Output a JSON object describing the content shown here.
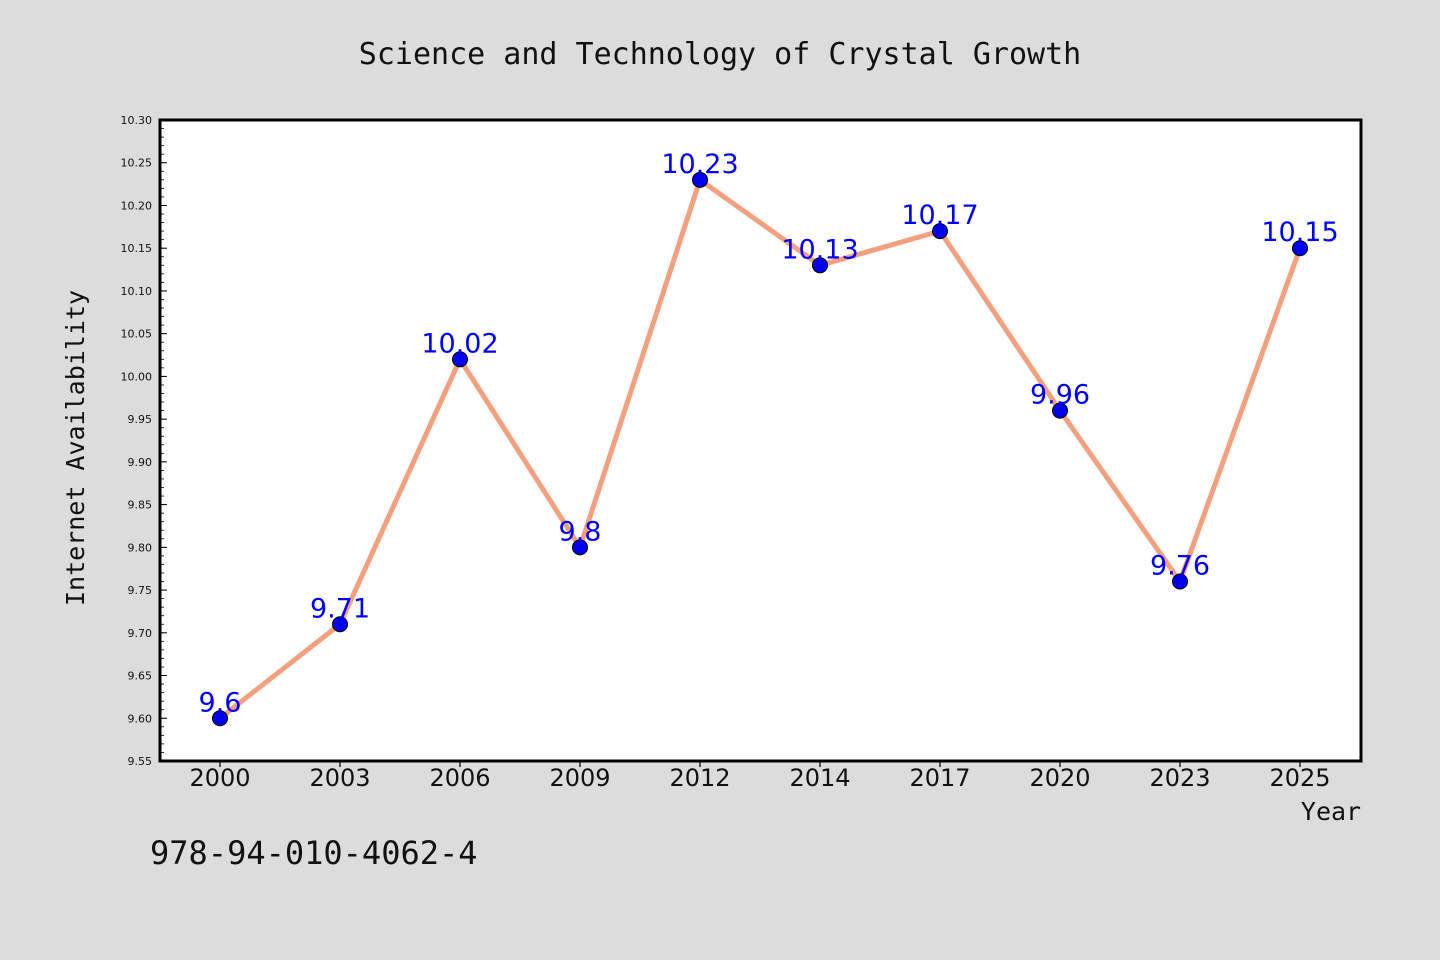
{
  "chart_data": {
    "type": "line",
    "title": "Science and Technology of Crystal Growth",
    "xlabel": "Year",
    "ylabel": "Internet Availability",
    "categories": [
      "2000",
      "2003",
      "2006",
      "2009",
      "2012",
      "2014",
      "2017",
      "2020",
      "2023",
      "2025"
    ],
    "series": [
      {
        "values": [
          9.6,
          9.71,
          10.02,
          9.8,
          10.23,
          10.13,
          10.17,
          9.96,
          9.76,
          10.15
        ],
        "data_labels": [
          "9.6",
          "9.71",
          "10.02",
          "9.8",
          "10.23",
          "10.13",
          "10.17",
          "9.96",
          "9.76",
          "10.15"
        ],
        "line_color": "#f4a07e",
        "marker_color": "#0000ee",
        "label_color": "#0000ff"
      }
    ],
    "ylim": [
      9.55,
      10.3
    ],
    "yticks": [
      "9.55",
      "9.60",
      "9.65",
      "9.70",
      "9.75",
      "9.80",
      "9.85",
      "9.90",
      "9.95",
      "10.00",
      "10.05",
      "10.10",
      "10.15",
      "10.20",
      "10.25",
      "10.30"
    ],
    "grid": false,
    "legend": "none"
  },
  "footer": {
    "isbn": "978-94-010-4062-4"
  },
  "colors": {
    "background": "#dcdcdc",
    "plot_background": "#ffffff",
    "axis": "#000000"
  }
}
